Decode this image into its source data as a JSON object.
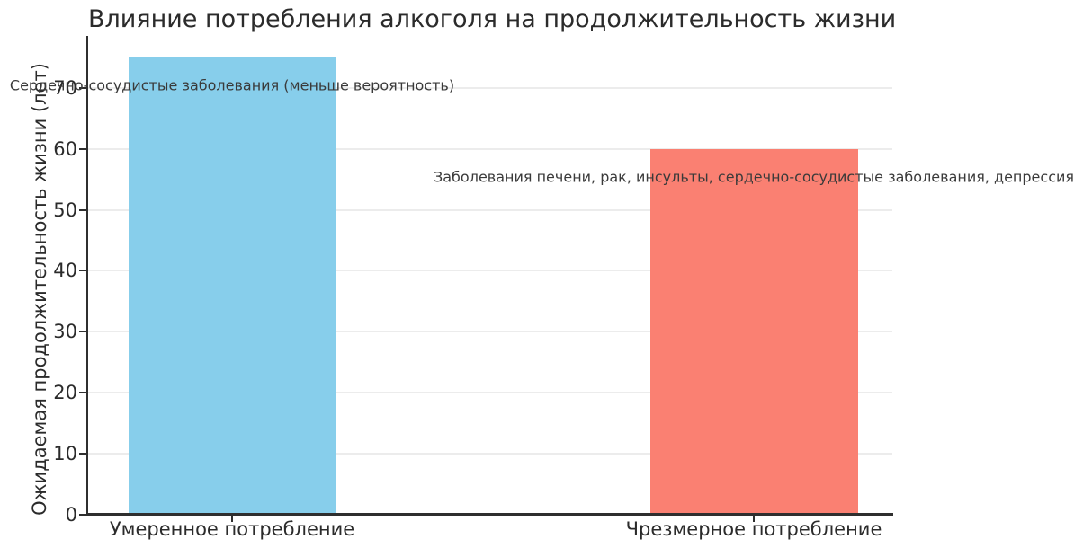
{
  "chart_data": {
    "type": "bar",
    "title": "Влияние потребления алкоголя на продолжительность жизни",
    "xlabel": "",
    "ylabel": "Ожидаемая продолжительность жизни (лет)",
    "categories": [
      "Умеренное потребление",
      "Чрезмерное потребление"
    ],
    "values": [
      75,
      60
    ],
    "bar_colors": [
      "#87CEEB",
      "#FA8072"
    ],
    "yticks": [
      0,
      10,
      20,
      30,
      40,
      50,
      60,
      70
    ],
    "ylim": [
      0,
      78.5
    ],
    "grid": "horizontal",
    "legend": "none",
    "annotations": [
      {
        "text": "Сердечно-сосудистые заболевания (меньше вероятность)",
        "target": "Умеренное потребление"
      },
      {
        "text": "Заболевания печени, рак, инсульты, сердечно-сосудистые заболевания, депрессия",
        "target": "Чрезмерное потребление"
      }
    ],
    "colors": {
      "background": "#ffffff",
      "grid": "#ececec",
      "axis": "#2f2f2f",
      "text": "#2b2b2b",
      "annotation_text": "#3a3a3a"
    }
  }
}
